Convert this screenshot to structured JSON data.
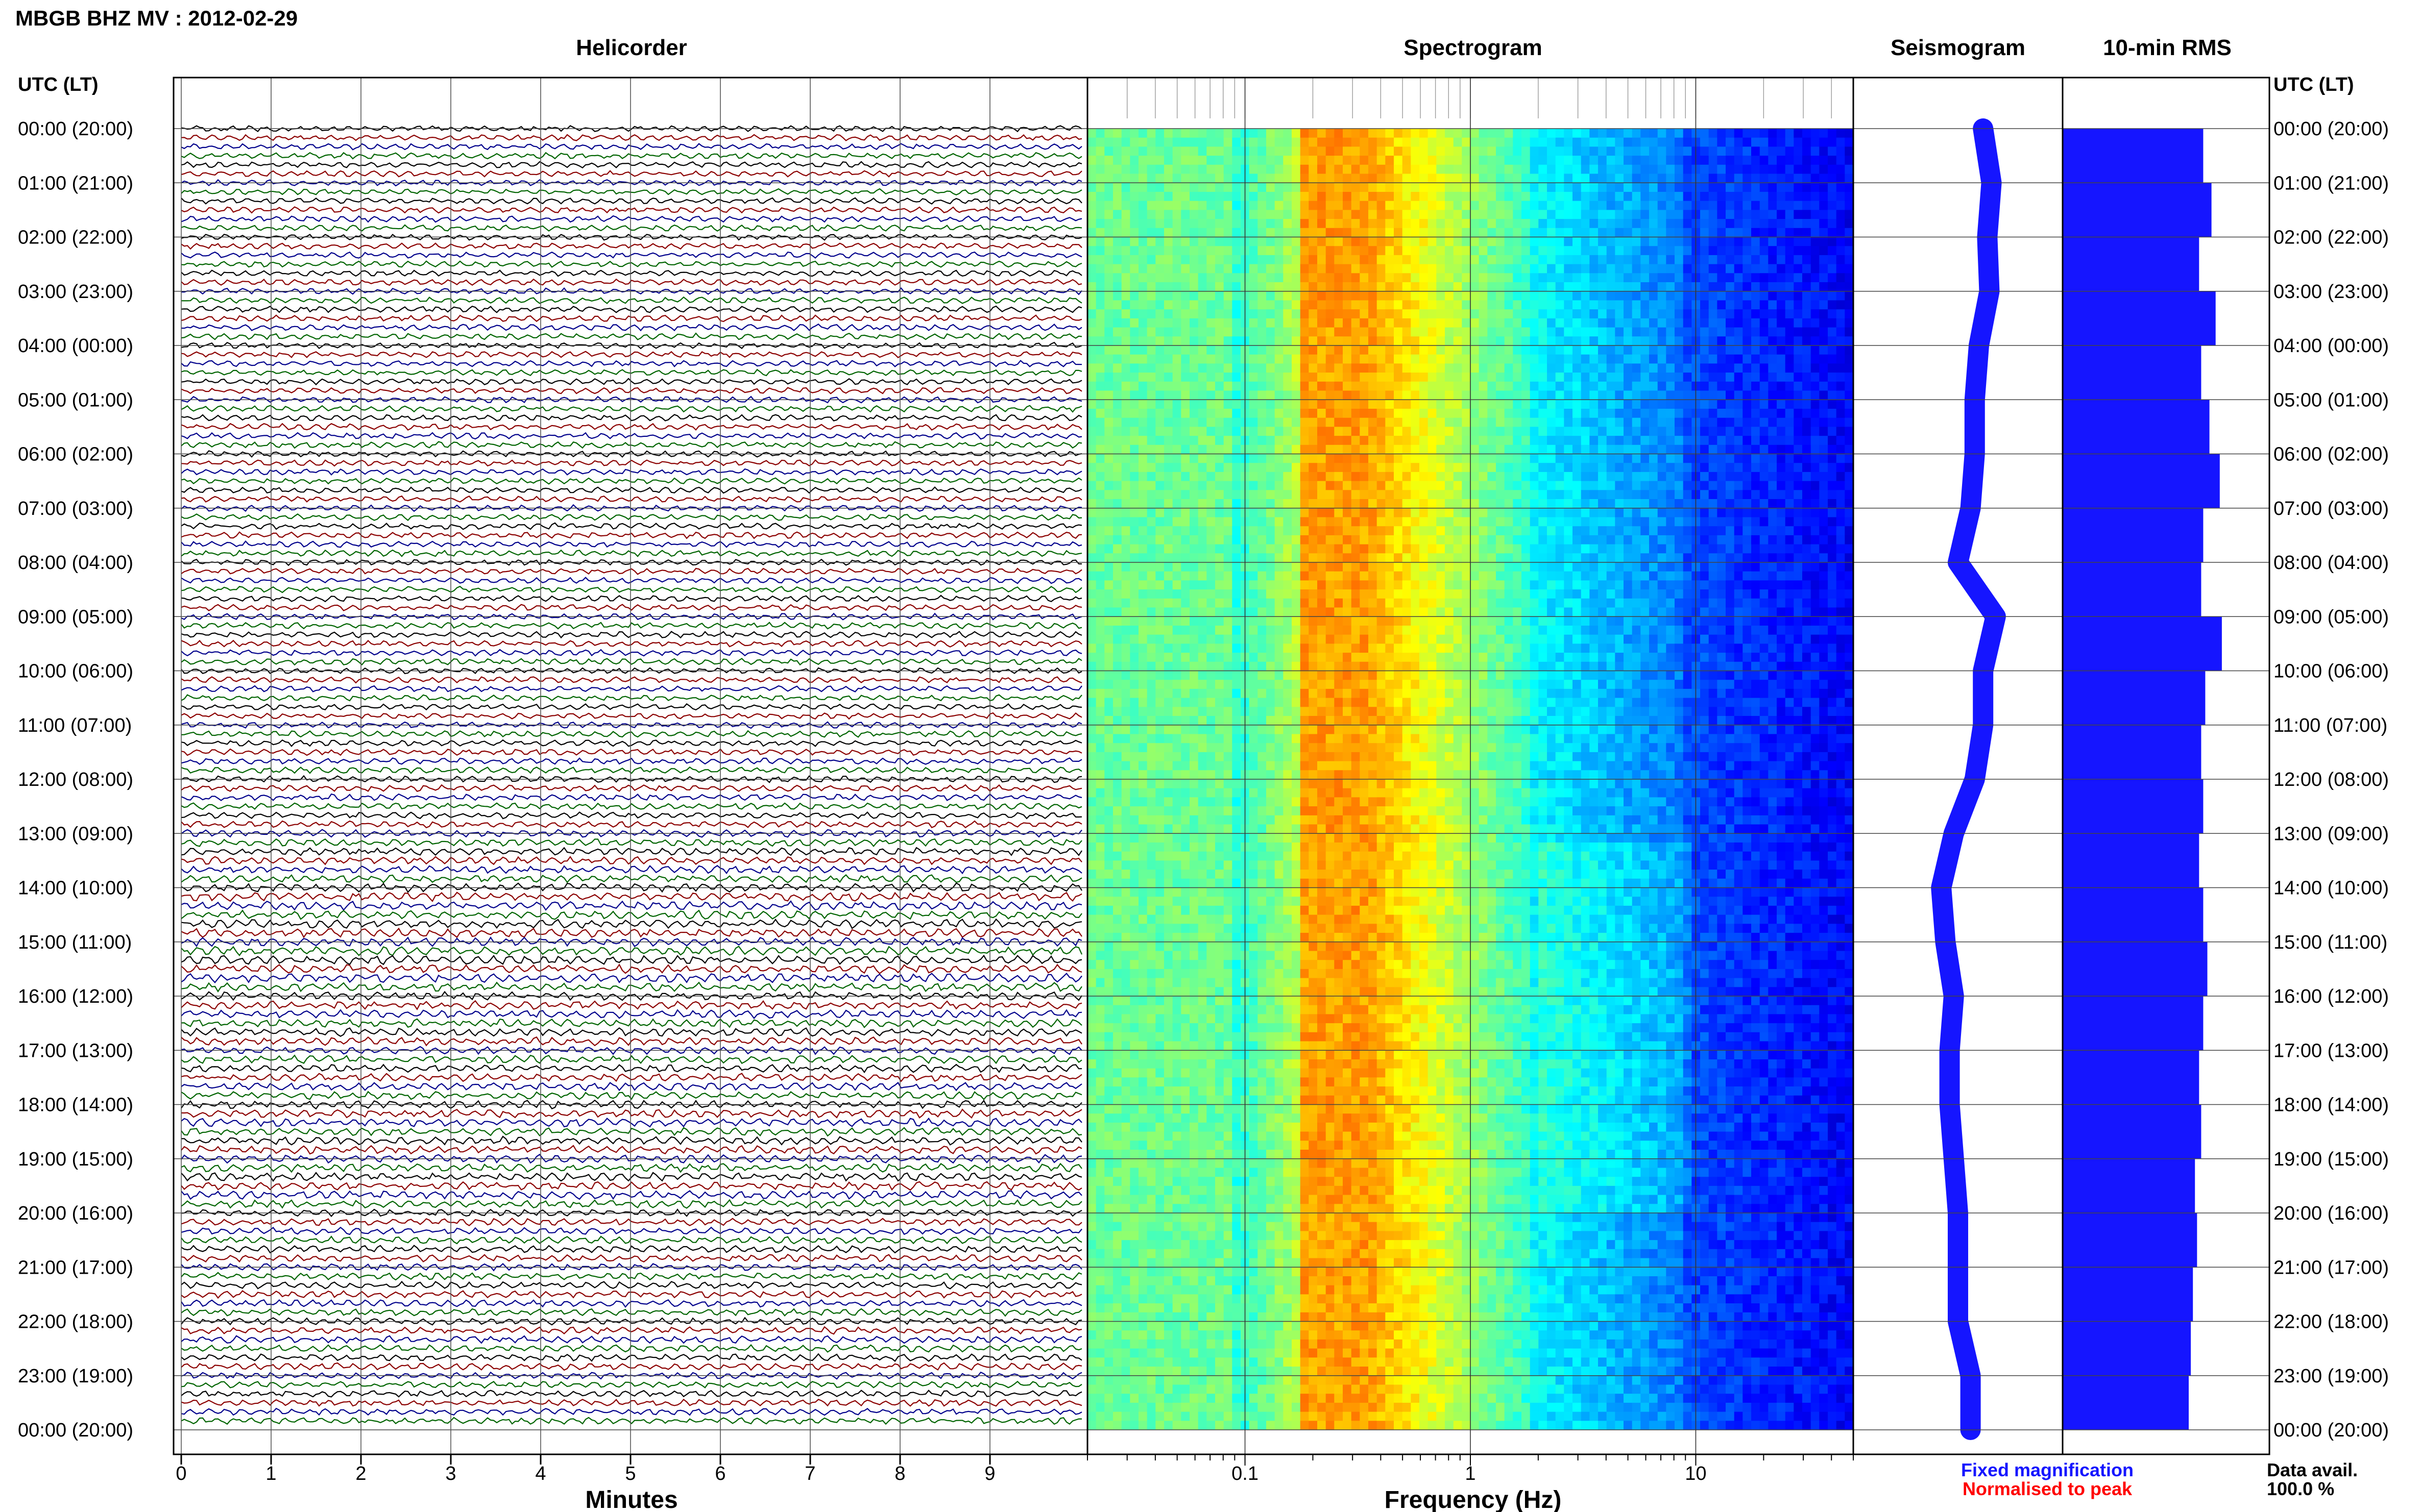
{
  "header": {
    "title": "MBGB BHZ MV : 2012-02-29"
  },
  "panels": {
    "helicorder": "Helicorder",
    "spectrogram": "Spectrogram",
    "seismogram": "Seismogram",
    "rms": "10-min RMS"
  },
  "axis": {
    "time_header_left": "UTC (LT)",
    "time_header_right": "UTC (LT)",
    "minutes_label": "Minutes",
    "frequency_label": "Frequency (Hz)"
  },
  "legend": {
    "fixed": "Fixed magnification",
    "normalised": "Normalised to peak",
    "data_avail_label": "Data avail.",
    "data_avail_value": "100.0 %"
  },
  "colors": {
    "trace_cycle": [
      "#000000",
      "#8b0000",
      "#00008b",
      "#006400"
    ],
    "seismogram": "#1515ff",
    "rms": "#1515ff",
    "fixed_magnification": "#1515ff",
    "normalised_to_peak": "#ff0000"
  },
  "chart_data": [
    {
      "type": "line",
      "name": "Helicorder",
      "xlabel": "Minutes",
      "xlim": [
        0,
        10
      ],
      "x_ticks": [
        "0",
        "1",
        "2",
        "3",
        "4",
        "5",
        "6",
        "7",
        "8",
        "9"
      ],
      "y_ticks": [
        "00:00 (20:00)",
        "01:00 (21:00)",
        "02:00 (22:00)",
        "03:00 (23:00)",
        "04:00 (00:00)",
        "05:00 (01:00)",
        "06:00 (02:00)",
        "07:00 (03:00)",
        "08:00 (04:00)",
        "09:00 (05:00)",
        "10:00 (06:00)",
        "11:00 (07:00)",
        "12:00 (08:00)",
        "13:00 (09:00)",
        "14:00 (10:00)",
        "15:00 (11:00)",
        "16:00 (12:00)",
        "17:00 (13:00)",
        "18:00 (14:00)",
        "19:00 (15:00)",
        "20:00 (16:00)",
        "21:00 (17:00)",
        "22:00 (18:00)",
        "23:00 (19:00)",
        "00:00 (20:00)"
      ],
      "rows": 144,
      "amplitude_by_hour": [
        1.0,
        1.0,
        1.0,
        1.05,
        1.0,
        1.05,
        1.0,
        1.05,
        1.0,
        1.05,
        1.0,
        1.05,
        1.1,
        1.3,
        1.5,
        1.5,
        1.4,
        1.3,
        1.4,
        1.4,
        1.2,
        1.2,
        1.2,
        1.1
      ]
    },
    {
      "type": "heatmap",
      "name": "Spectrogram",
      "xlabel": "Frequency (Hz)",
      "xscale": "log",
      "xlim": [
        0.02,
        50
      ],
      "x_ticks": [
        "0.1",
        "1",
        "10"
      ],
      "dominant_band_hz": [
        0.17,
        0.35
      ]
    },
    {
      "type": "line",
      "name": "Seismogram",
      "hours": [
        0,
        1,
        2,
        3,
        4,
        5,
        6,
        7,
        8,
        9,
        10,
        11,
        12,
        13,
        14,
        15,
        16,
        17,
        18,
        19,
        20,
        21,
        22,
        23,
        24
      ],
      "position": [
        0.62,
        0.66,
        0.64,
        0.65,
        0.6,
        0.58,
        0.58,
        0.56,
        0.5,
        0.68,
        0.62,
        0.62,
        0.58,
        0.48,
        0.42,
        0.44,
        0.48,
        0.46,
        0.46,
        0.48,
        0.5,
        0.5,
        0.5,
        0.56,
        0.56
      ]
    },
    {
      "type": "bar",
      "name": "10-min RMS",
      "hours": [
        0,
        1,
        2,
        3,
        4,
        5,
        6,
        7,
        8,
        9,
        10,
        11,
        12,
        13,
        14,
        15,
        16,
        17,
        18,
        19,
        20,
        21,
        22,
        23
      ],
      "values": [
        0.68,
        0.72,
        0.66,
        0.74,
        0.67,
        0.71,
        0.76,
        0.68,
        0.67,
        0.77,
        0.69,
        0.67,
        0.68,
        0.66,
        0.68,
        0.7,
        0.68,
        0.66,
        0.67,
        0.64,
        0.65,
        0.63,
        0.62,
        0.61
      ],
      "xlim": [
        0,
        1
      ]
    }
  ]
}
